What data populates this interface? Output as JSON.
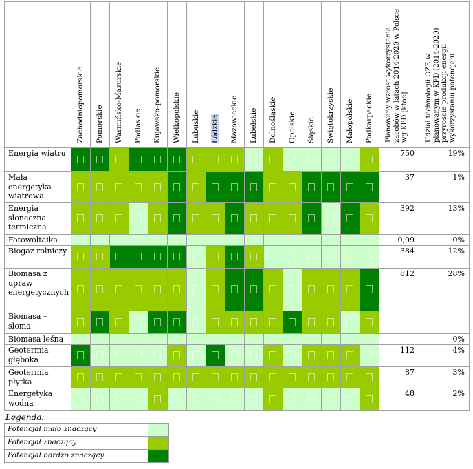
{
  "title": "",
  "colors": {
    "low": "#ccffcc",
    "mid": "#99cc00",
    "high": "#008000"
  },
  "regions": [
    "Zachodniopomorskie",
    "Pomorskie",
    "Warmińsko-Mazurskie",
    "Podlaskie",
    "Kujawsko-pomorskie",
    "Wielkopolskie",
    "Lubuskie",
    "Łódzkie",
    "Mazowieckie",
    "Lubelskie",
    "Dolnośląskie",
    "Opolskie",
    "Śląskie",
    "Świętokrzyskie",
    "Małopolskie",
    "Podkarpackie"
  ],
  "highlighted_region": "Łódzkie",
  "col_planned": "Planowany wzrost wykorzystania zasobów w latach 2014-2020 w Polsce wg KPD [ktoe]",
  "col_share": "Udział technologii OZE w planowanym w KPD (2014-2020) przyroście produkcji energii wykorzystaniu potencjału",
  "rows": [
    {
      "label": "Energia wiatru",
      "cells": [
        "H",
        "H",
        "M",
        "H",
        "H",
        "H",
        "M",
        "M",
        "M",
        "L",
        "M",
        "L",
        "L",
        "L",
        "L",
        "M"
      ],
      "planned": "750",
      "share": "19%"
    },
    {
      "label": "Mała energetyka wiatrowa",
      "cells": [
        "M",
        "M",
        "M",
        "M",
        "M",
        "H",
        "M",
        "H",
        "H",
        "H",
        "M",
        "M",
        "H",
        "H",
        "H",
        "H"
      ],
      "planned": "37",
      "share": "1%"
    },
    {
      "label": "Energia słoneczna termiczna",
      "cells": [
        "M",
        "M",
        "M",
        "L",
        "M",
        "H",
        "M",
        "M",
        "H",
        "M",
        "M",
        "M",
        "H",
        "L",
        "H",
        "M"
      ],
      "planned": "392",
      "share": "13%"
    },
    {
      "label": "Fotowoltaika",
      "cells": [
        "L",
        "L",
        "L",
        "L",
        "L",
        "L",
        "L",
        "L",
        "L",
        "L",
        "L",
        "L",
        "L",
        "L",
        "L",
        "L"
      ],
      "planned": "0,09",
      "share": "0%"
    },
    {
      "label": "Biogaz rolniczy",
      "cells": [
        "M",
        "M",
        "H",
        "H",
        "H",
        "H",
        "L",
        "M",
        "H",
        "M",
        "L",
        "L",
        "L",
        "L",
        "L",
        "L"
      ],
      "planned": "384",
      "share": "12%"
    },
    {
      "label": "Biomasa z upraw energetycznych",
      "cells": [
        "M",
        "M",
        "M",
        "M",
        "M",
        "M",
        "L",
        "M",
        "H",
        "H",
        "M",
        "L",
        "M",
        "M",
        "M",
        "H"
      ],
      "planned": "812",
      "share": "28%"
    },
    {
      "label": "Biomasa – słoma",
      "cells": [
        "M",
        "H",
        "M",
        "L",
        "H",
        "H",
        "L",
        "M",
        "M",
        "M",
        "M",
        "H",
        "M",
        "M",
        "L",
        "M"
      ],
      "planned": "",
      "share": ""
    },
    {
      "label": "Biomasa leśna",
      "cells": [
        "L",
        "L",
        "L",
        "L",
        "L",
        "L",
        "L",
        "L",
        "L",
        "L",
        "L",
        "L",
        "L",
        "L",
        "L",
        "L"
      ],
      "planned": "",
      "share": "0%"
    },
    {
      "label": "Geotermia głęboka",
      "cells": [
        "H",
        "L",
        "L",
        "L",
        "L",
        "M",
        "L",
        "H",
        "L",
        "L",
        "M",
        "L",
        "M",
        "M",
        "M",
        "L"
      ],
      "planned": "112",
      "share": "4%"
    },
    {
      "label": "Geotermia płytka",
      "cells": [
        "M",
        "M",
        "M",
        "M",
        "M",
        "M",
        "M",
        "M",
        "M",
        "M",
        "M",
        "M",
        "M",
        "M",
        "M",
        "M"
      ],
      "planned": "87",
      "share": "3%"
    },
    {
      "label": "Energetyka wodna",
      "cells": [
        "L",
        "L",
        "L",
        "L",
        "M",
        "L",
        "L",
        "L",
        "L",
        "L",
        "M",
        "L",
        "L",
        "L",
        "L",
        "M"
      ],
      "planned": "48",
      "share": "2%"
    }
  ],
  "legend": {
    "title": "Legenda:",
    "items": [
      {
        "label": "Potencjał mało znaczący",
        "level": "L"
      },
      {
        "label": "Potencjał znaczący",
        "level": "M"
      },
      {
        "label": "Potencjał bardzo znaczący",
        "level": "H"
      }
    ]
  }
}
